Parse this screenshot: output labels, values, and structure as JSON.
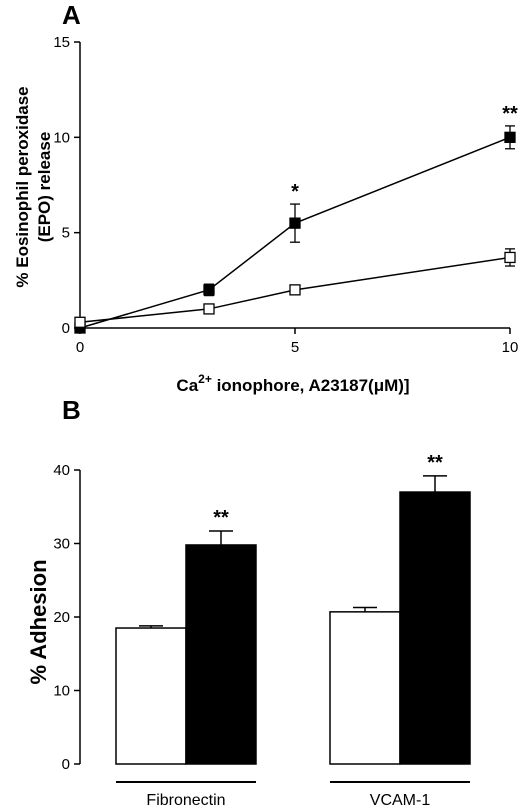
{
  "chart_data": [
    {
      "panel": "A",
      "type": "line",
      "xlabel_prefix": "Ca",
      "xlabel_sup": "2+",
      "xlabel_suffix": " ionophore, A23187(μM)]",
      "ylabel_line1": "% Eosinophil peroxidase",
      "ylabel_line2": "(EPO) release",
      "xlim": [
        0,
        10
      ],
      "ylim": [
        0,
        15
      ],
      "xticks": [
        0,
        5,
        10
      ],
      "yticks": [
        0,
        5,
        10,
        15
      ],
      "series": [
        {
          "marker": "filled-square",
          "x": [
            0,
            3,
            5,
            10
          ],
          "y": [
            0.0,
            2.0,
            5.5,
            10.0
          ],
          "err": [
            0.0,
            0.3,
            1.0,
            0.6
          ],
          "sig": [
            "",
            "",
            "*",
            "**"
          ]
        },
        {
          "marker": "open-square",
          "x": [
            0,
            3,
            5,
            10
          ],
          "y": [
            0.3,
            1.0,
            2.0,
            3.7
          ],
          "err": [
            0.0,
            0.1,
            0.1,
            0.45
          ],
          "sig": [
            "",
            "",
            "",
            ""
          ]
        }
      ]
    },
    {
      "panel": "B",
      "type": "bar",
      "ylabel": "% Adhesion",
      "ylim": [
        0,
        40
      ],
      "yticks": [
        0,
        10,
        20,
        30,
        40
      ],
      "categories": [
        "Fibronectin",
        "VCAM-1"
      ],
      "series": [
        {
          "fill": "#ffffff",
          "values": [
            18.5,
            20.7
          ],
          "err": [
            0.3,
            0.6
          ],
          "sig": [
            "",
            ""
          ]
        },
        {
          "fill": "#000000",
          "values": [
            29.8,
            37.0
          ],
          "err": [
            1.9,
            2.2
          ],
          "sig": [
            "**",
            "**"
          ]
        }
      ]
    }
  ]
}
